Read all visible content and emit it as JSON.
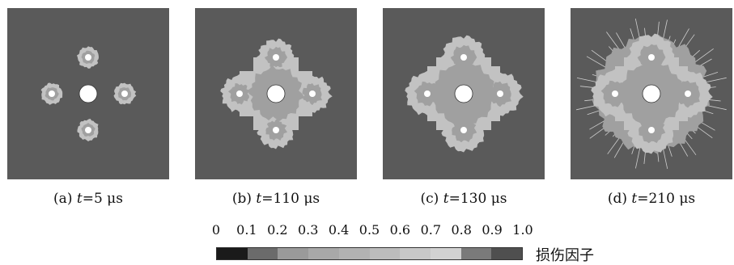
{
  "panels": [
    {
      "label": "(a)",
      "t_symbol": "t",
      "equals": "=5",
      "unit": "μs",
      "stage": 0
    },
    {
      "label": "(b)",
      "t_symbol": "t",
      "equals": "=110",
      "unit": "μs",
      "stage": 1
    },
    {
      "label": "(c)",
      "t_symbol": "t",
      "equals": "=130",
      "unit": "μs",
      "stage": 2
    },
    {
      "label": "(d)",
      "t_symbol": "t",
      "equals": "=210",
      "unit": "μs",
      "stage": 3
    }
  ],
  "colorbar": {
    "title": "损伤因子",
    "ticks": [
      "0",
      "0.1",
      "0.2",
      "0.3",
      "0.4",
      "0.5",
      "0.6",
      "0.7",
      "0.8",
      "0.9",
      "1.0"
    ],
    "colors": [
      "#1a1a1a",
      "#6b6b6b",
      "#9a9a9a",
      "#a8a8a8",
      "#b2b2b2",
      "#bcbcbc",
      "#c8c8c8",
      "#d2d2d2",
      "#7a7a7a",
      "#4f4f4f"
    ]
  },
  "colors": {
    "background_damage": "#5a5a5a",
    "light_damage": "#c2c2c2",
    "mid_damage": "#a0a0a0",
    "hole": "#ffffff"
  }
}
